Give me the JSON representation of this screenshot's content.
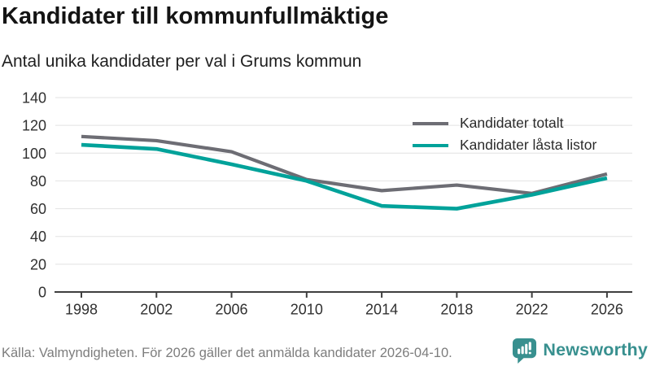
{
  "title": "Kandidater till kommunfullmäktige",
  "subtitle": "Antal unika kandidater per val i Grums kommun",
  "chart_data": {
    "type": "line",
    "x": [
      "1998",
      "2002",
      "2006",
      "2010",
      "2014",
      "2018",
      "2022",
      "2026"
    ],
    "series": [
      {
        "name": "Kandidater totalt",
        "color": "#6d6d74",
        "values": [
          112,
          109,
          101,
          81,
          73,
          77,
          71,
          85
        ]
      },
      {
        "name": "Kandidater låsta listor",
        "color": "#00a29a",
        "values": [
          106,
          103,
          92,
          80,
          62,
          60,
          70,
          82
        ]
      }
    ],
    "ylim": [
      0,
      140
    ],
    "yticks": [
      0,
      20,
      40,
      60,
      80,
      100,
      120,
      140
    ],
    "grid": "horizontal",
    "grid_color": "#e2e2e2",
    "axis_color": "#3f3f3f",
    "tick_label_color": "#303030",
    "legend_position": "top-right"
  },
  "footer": {
    "source": "Källa: Valmyndigheten. För 2026 gäller det anmälda kandidater 2026-04-10."
  },
  "branding": {
    "name": "Newsworthy",
    "color": "#38908f",
    "icon": "newsworthy-chart-speech-bubble-icon"
  }
}
